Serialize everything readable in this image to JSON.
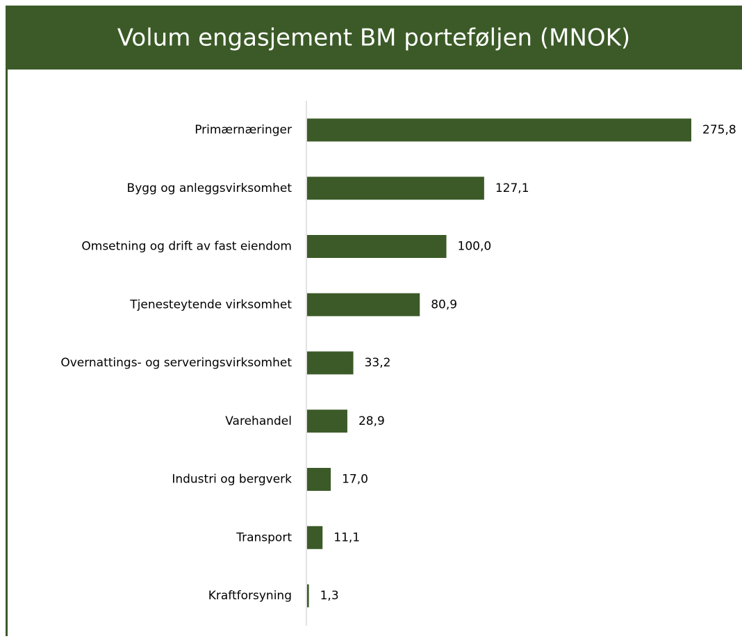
{
  "chart_data": {
    "type": "bar",
    "orientation": "horizontal",
    "title": "Volum engasjement BM porteføljen (MNOK)",
    "categories": [
      "Primærnæringer",
      "Bygg og anleggsvirksomhet",
      "Omsetning og drift av fast eiendom",
      "Tjenesteytende virksomhet",
      "Overnattings- og serveringsvirksomhet",
      "Varehandel",
      "Industri og bergverk",
      "Transport",
      "Kraftforsyning"
    ],
    "values": [
      275.8,
      127.1,
      100.0,
      80.9,
      33.2,
      28.9,
      17.0,
      11.1,
      1.3
    ],
    "value_labels": [
      "275,8",
      "127,1",
      "100,0",
      "80,9",
      "33,2",
      "28,9",
      "17,0",
      "11,1",
      "1,3"
    ],
    "color": "#3b5a27"
  }
}
